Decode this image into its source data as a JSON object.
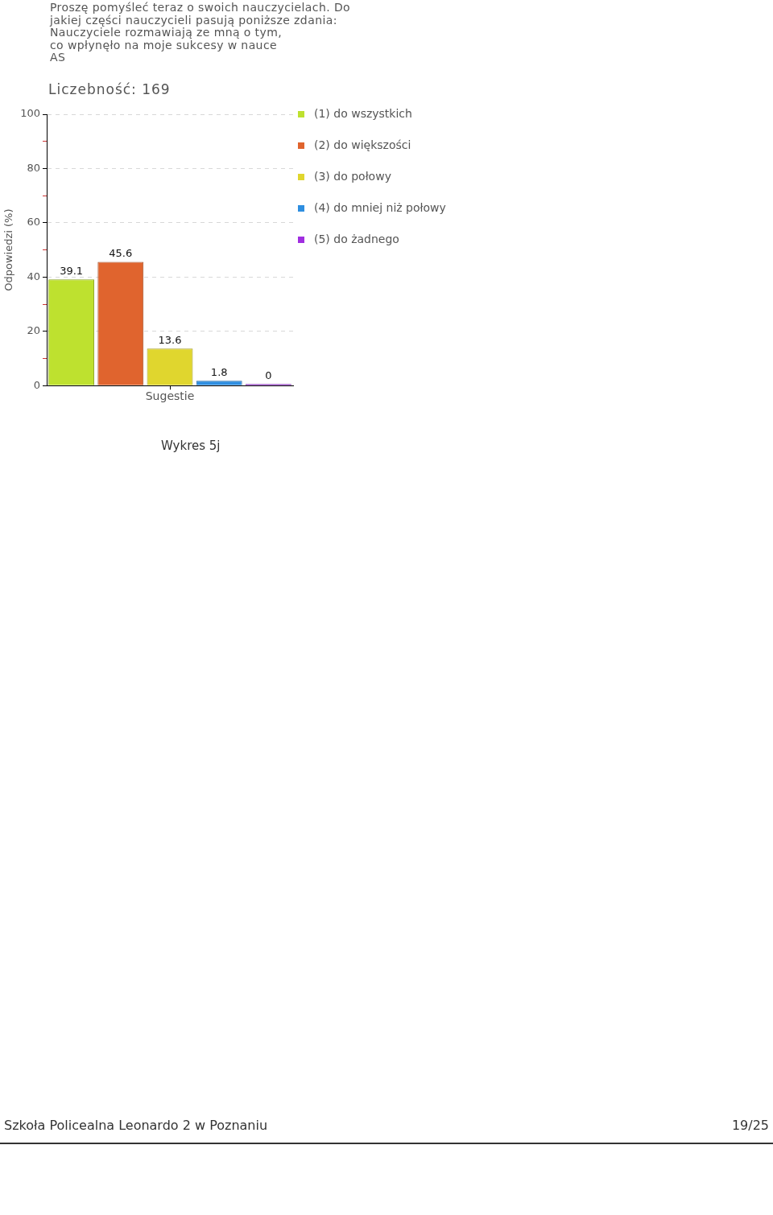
{
  "chart_data": {
    "type": "bar",
    "title": "Proszę pomyśleć teraz o swoich nauczycielach. Do\njakiej części nauczycieli pasują poniższe zdania:\nNauczyciele rozmawiają ze mną o tym,\nco wpłynęło na moje sukcesy w nauce\nAS",
    "subtitle": "Liczebność: 169",
    "ylabel": "Odpowiedzi (%)",
    "categories": [
      "Sugestie"
    ],
    "series": [
      {
        "name": "(1) do wszystkich",
        "color": "#bee12f",
        "values": [
          39.1
        ]
      },
      {
        "name": "(2) do większości",
        "color": "#e0642e",
        "values": [
          45.6
        ]
      },
      {
        "name": "(3) do połowy",
        "color": "#e0d62e",
        "values": [
          13.6
        ]
      },
      {
        "name": "(4) do mniej niż połowy",
        "color": "#2e8ee0",
        "values": [
          1.8
        ]
      },
      {
        "name": "(5) do żadnego",
        "color": "#a02ee0",
        "values": [
          0
        ]
      }
    ],
    "ylim": [
      0,
      100
    ],
    "yticks": [
      0,
      {
        "value": 10,
        "label": null
      },
      20,
      {
        "value": 30,
        "label": null
      },
      40,
      {
        "value": 50,
        "label": null
      },
      60,
      {
        "value": 70,
        "label": null
      },
      80,
      {
        "value": 90,
        "label": null
      },
      100
    ],
    "grid": "y",
    "legend": "right",
    "data_labels": true,
    "annotations": [
      "Wykres 5j",
      "Szkoła Policealna Leonardo 2 w Poznaniu",
      "19/25"
    ]
  }
}
